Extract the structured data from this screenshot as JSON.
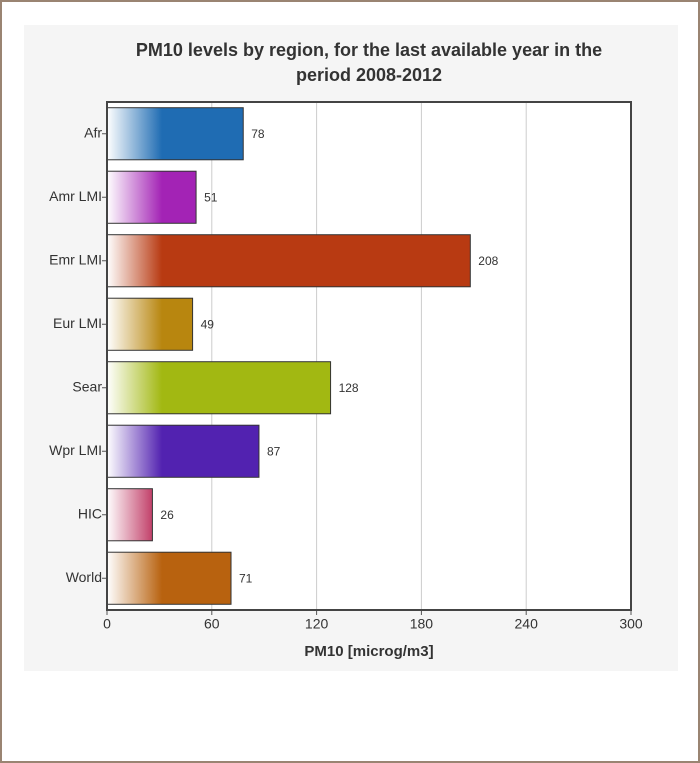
{
  "chart_data": {
    "type": "bar",
    "orientation": "horizontal",
    "title": "PM10 levels by region, for the last available year in the period 2008-2012",
    "x_label": "PM10 [microg/m3]",
    "categories": [
      "Afr",
      "Amr LMI",
      "Emr LMI",
      "Eur LMI",
      "Sear",
      "Wpr LMI",
      "HIC",
      "World"
    ],
    "values": [
      78,
      51,
      208,
      49,
      128,
      87,
      26,
      71
    ],
    "colors": [
      "#1f6cb3",
      "#a323b5",
      "#b83a12",
      "#b8860f",
      "#a2b812",
      "#5222b0",
      "#b5184a",
      "#b8620f"
    ],
    "xlim": [
      0,
      300
    ],
    "xticks": [
      0,
      60,
      120,
      180,
      240,
      300
    ],
    "grid": true
  }
}
